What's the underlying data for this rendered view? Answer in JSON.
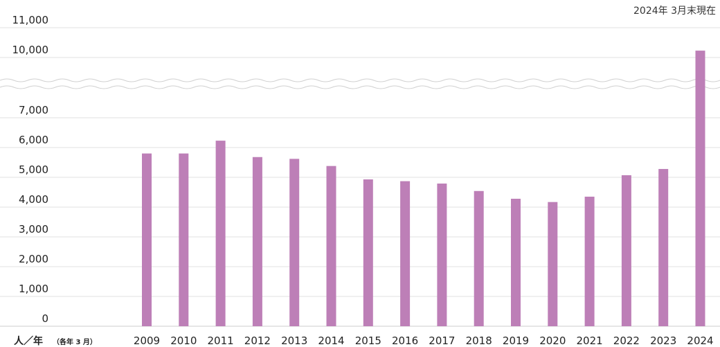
{
  "chart_data": {
    "type": "bar",
    "title": "",
    "note": "2024年 3月末現在",
    "ylabel": "人／年",
    "ylabel_sub": "（各年 3 月）",
    "xlabel": "",
    "categories": [
      "2009",
      "2010",
      "2011",
      "2012",
      "2013",
      "2014",
      "2015",
      "2016",
      "2017",
      "2018",
      "2019",
      "2020",
      "2021",
      "2022",
      "2023",
      "2024"
    ],
    "values": [
      5800,
      5800,
      6230,
      5680,
      5620,
      5380,
      4930,
      4870,
      4790,
      4540,
      4280,
      4170,
      4350,
      5070,
      5280,
      10230
    ],
    "y_ticks_lower": [
      "0",
      "1,000",
      "2,000",
      "3,000",
      "4,000",
      "5,000",
      "6,000",
      "7,000"
    ],
    "y_ticks_upper": [
      "10,000",
      "11,000"
    ],
    "ylim": [
      0,
      11000
    ],
    "axis_break": [
      7000,
      10000
    ],
    "grid": true,
    "legend": "none",
    "bar_color": "#bd7fb7"
  }
}
